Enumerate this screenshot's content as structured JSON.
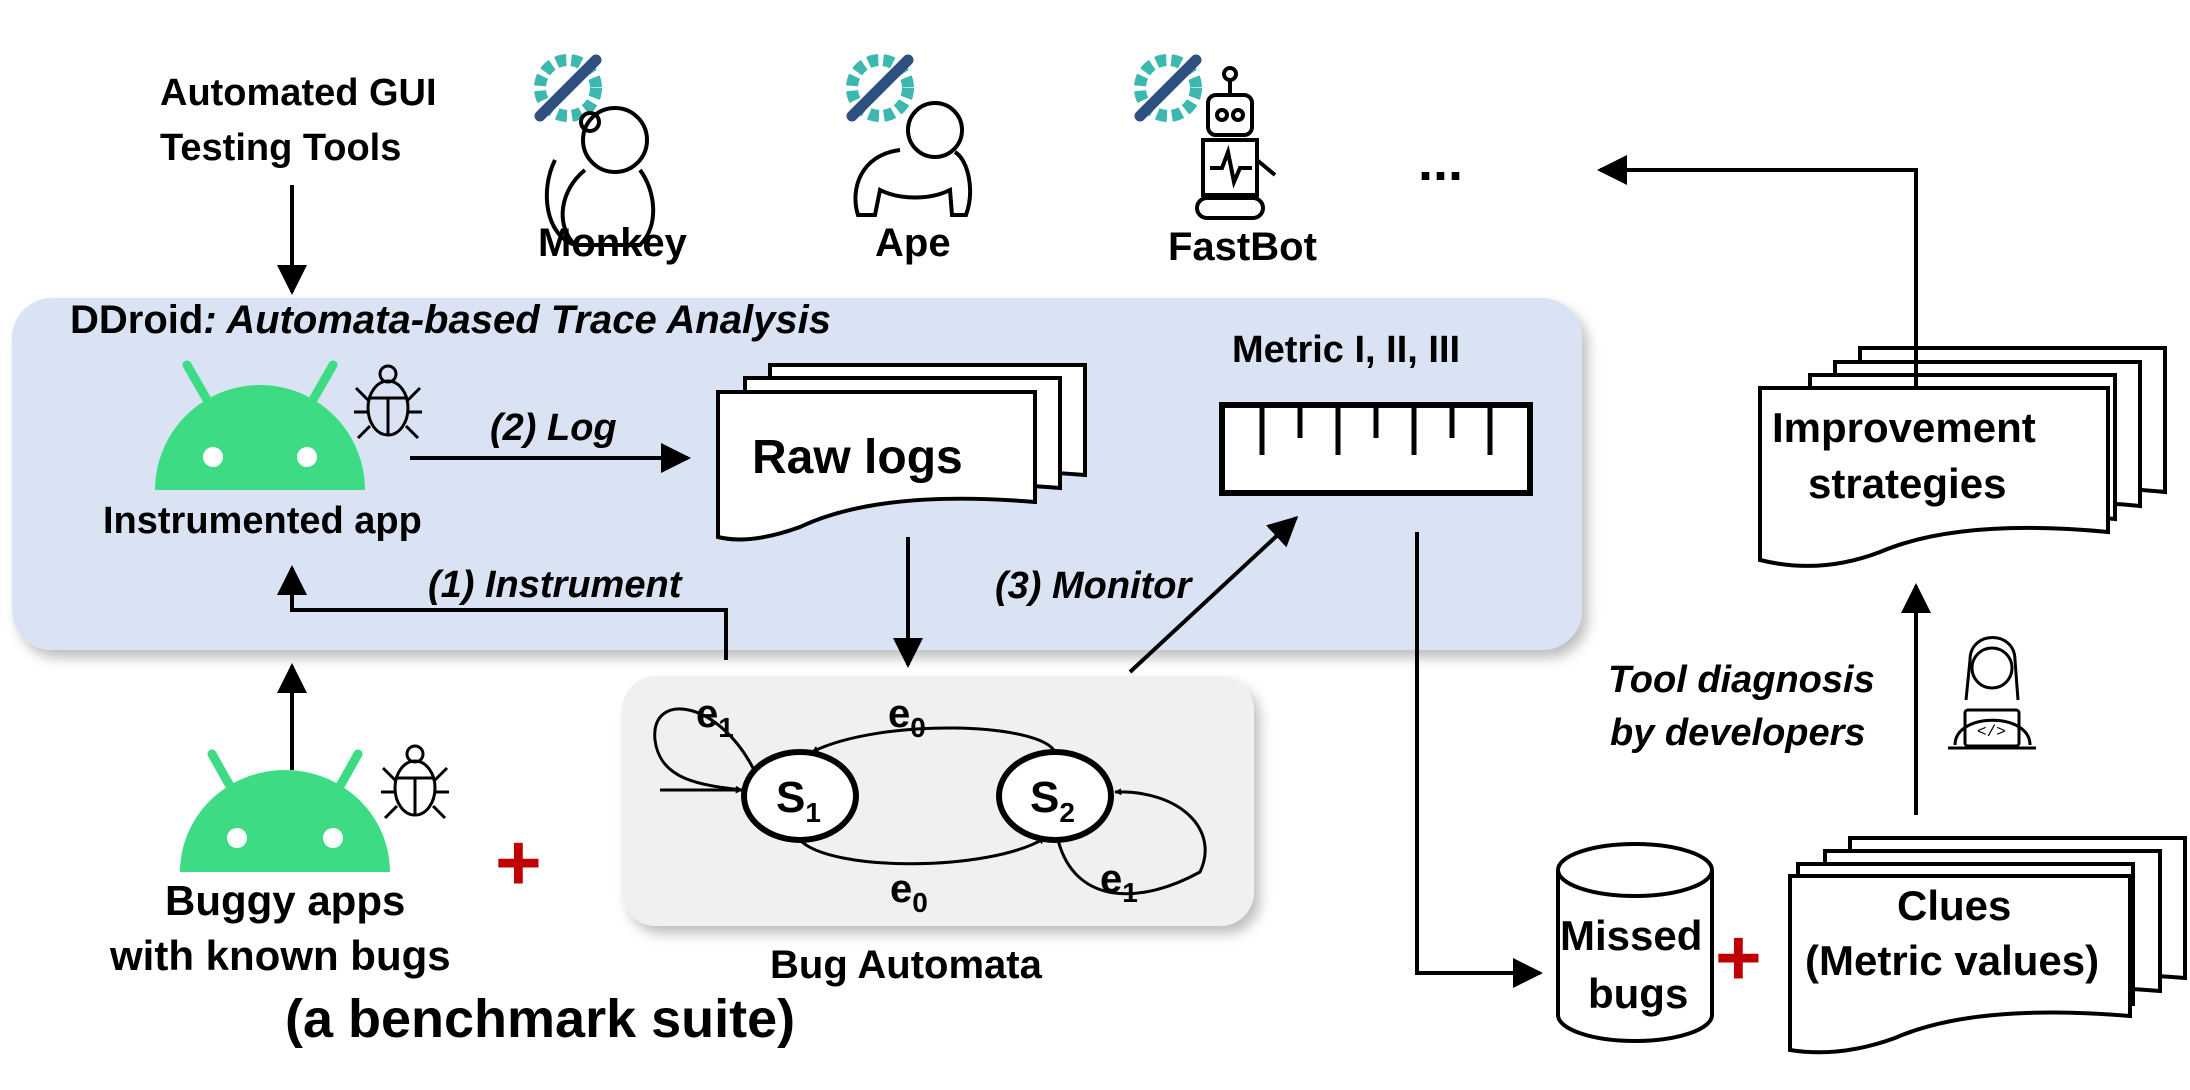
{
  "colors": {
    "ddroid_panel": "#d9e3f3",
    "automata_panel": "#f0f0f0",
    "android_green": "#3ddc84",
    "plus_red": "#c00000",
    "gear_teal": "#3cb8b0",
    "wrench_blue": "#2f4f7f"
  },
  "icons": {
    "tool_icon": "gear-wrench-icon",
    "monkey": "monkey-icon",
    "ape": "gorilla-icon",
    "fastbot": "robot-icon",
    "bug": "bug-icon",
    "android": "android-head-icon",
    "developer": "developer-laptop-icon",
    "database": "cylinder-icon",
    "ruler": "ruler-icon"
  },
  "top": {
    "tools_title_line1": "Automated GUI",
    "tools_title_line2": "Testing Tools",
    "tools": [
      {
        "name": "Monkey"
      },
      {
        "name": "Ape"
      },
      {
        "name": "FastBot"
      }
    ],
    "ellipsis": "..."
  },
  "ddroid": {
    "title_prefix": "DDroid",
    "title_italic": ": Automata-based Trace Analysis",
    "instrumented_app": "Instrumented app",
    "log_label": "(2) Log",
    "raw_logs": "Raw logs",
    "metric_label": "Metric I, II, III",
    "instrument_label": "(1) Instrument",
    "monitor_label": "(3) Monitor"
  },
  "automata": {
    "caption": "Bug Automata",
    "states": [
      {
        "base": "S",
        "sub": "1"
      },
      {
        "base": "S",
        "sub": "2"
      }
    ],
    "edges": [
      {
        "base": "e",
        "sub": "1"
      },
      {
        "base": "e",
        "sub": "0"
      },
      {
        "base": "e",
        "sub": "0"
      },
      {
        "base": "e",
        "sub": "1"
      }
    ]
  },
  "bottom_left": {
    "buggy_line1": "Buggy apps",
    "buggy_line2": "with known bugs",
    "benchmark": "(a benchmark suite)",
    "plus": "+"
  },
  "right": {
    "improvement_line1": "Improvement",
    "improvement_line2": "strategies",
    "diagnosis_line1": "Tool diagnosis",
    "diagnosis_line2": "by developers",
    "missed_line1": "Missed",
    "missed_line2": "bugs",
    "plus": "+",
    "clues_line1": "Clues",
    "clues_line2": "(Metric values)"
  }
}
